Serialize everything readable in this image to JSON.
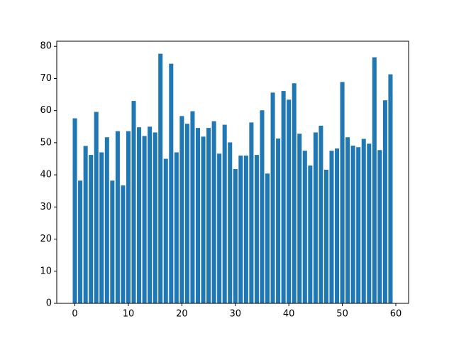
{
  "chart_data": {
    "type": "bar",
    "x": [
      0,
      1,
      2,
      3,
      4,
      5,
      6,
      7,
      8,
      9,
      10,
      11,
      12,
      13,
      14,
      15,
      16,
      17,
      18,
      19,
      20,
      21,
      22,
      23,
      24,
      25,
      26,
      27,
      28,
      29,
      30,
      31,
      32,
      33,
      34,
      35,
      36,
      37,
      38,
      39,
      40,
      41,
      42,
      43,
      44,
      45,
      46,
      47,
      48,
      49,
      50,
      51,
      52,
      53,
      54,
      55,
      56,
      57,
      58,
      59
    ],
    "values": [
      57.6,
      38.2,
      49.0,
      46.2,
      59.6,
      47.0,
      51.7,
      38.2,
      53.6,
      36.7,
      53.6,
      63.0,
      54.8,
      52.1,
      55.0,
      53.2,
      77.7,
      45.0,
      74.6,
      47.0,
      58.3,
      55.9,
      59.8,
      54.6,
      51.9,
      54.6,
      56.7,
      46.6,
      55.6,
      50.1,
      41.8,
      46.0,
      46.0,
      56.3,
      46.2,
      60.1,
      40.4,
      65.6,
      51.3,
      66.1,
      63.4,
      68.5,
      52.8,
      47.5,
      42.9,
      53.2,
      55.3,
      41.6,
      47.5,
      48.2,
      68.9,
      51.7,
      49.1,
      48.6,
      51.2,
      49.7,
      76.6,
      47.7,
      63.2,
      71.3
    ],
    "color": "#1f77b4",
    "xlim": [
      -3.39,
      62.39
    ],
    "xticks": [
      0,
      10,
      20,
      30,
      40,
      50,
      60
    ],
    "ylim": [
      0,
      81.6
    ],
    "yticks": [
      0,
      10,
      20,
      30,
      40,
      50,
      60,
      70,
      80
    ]
  }
}
